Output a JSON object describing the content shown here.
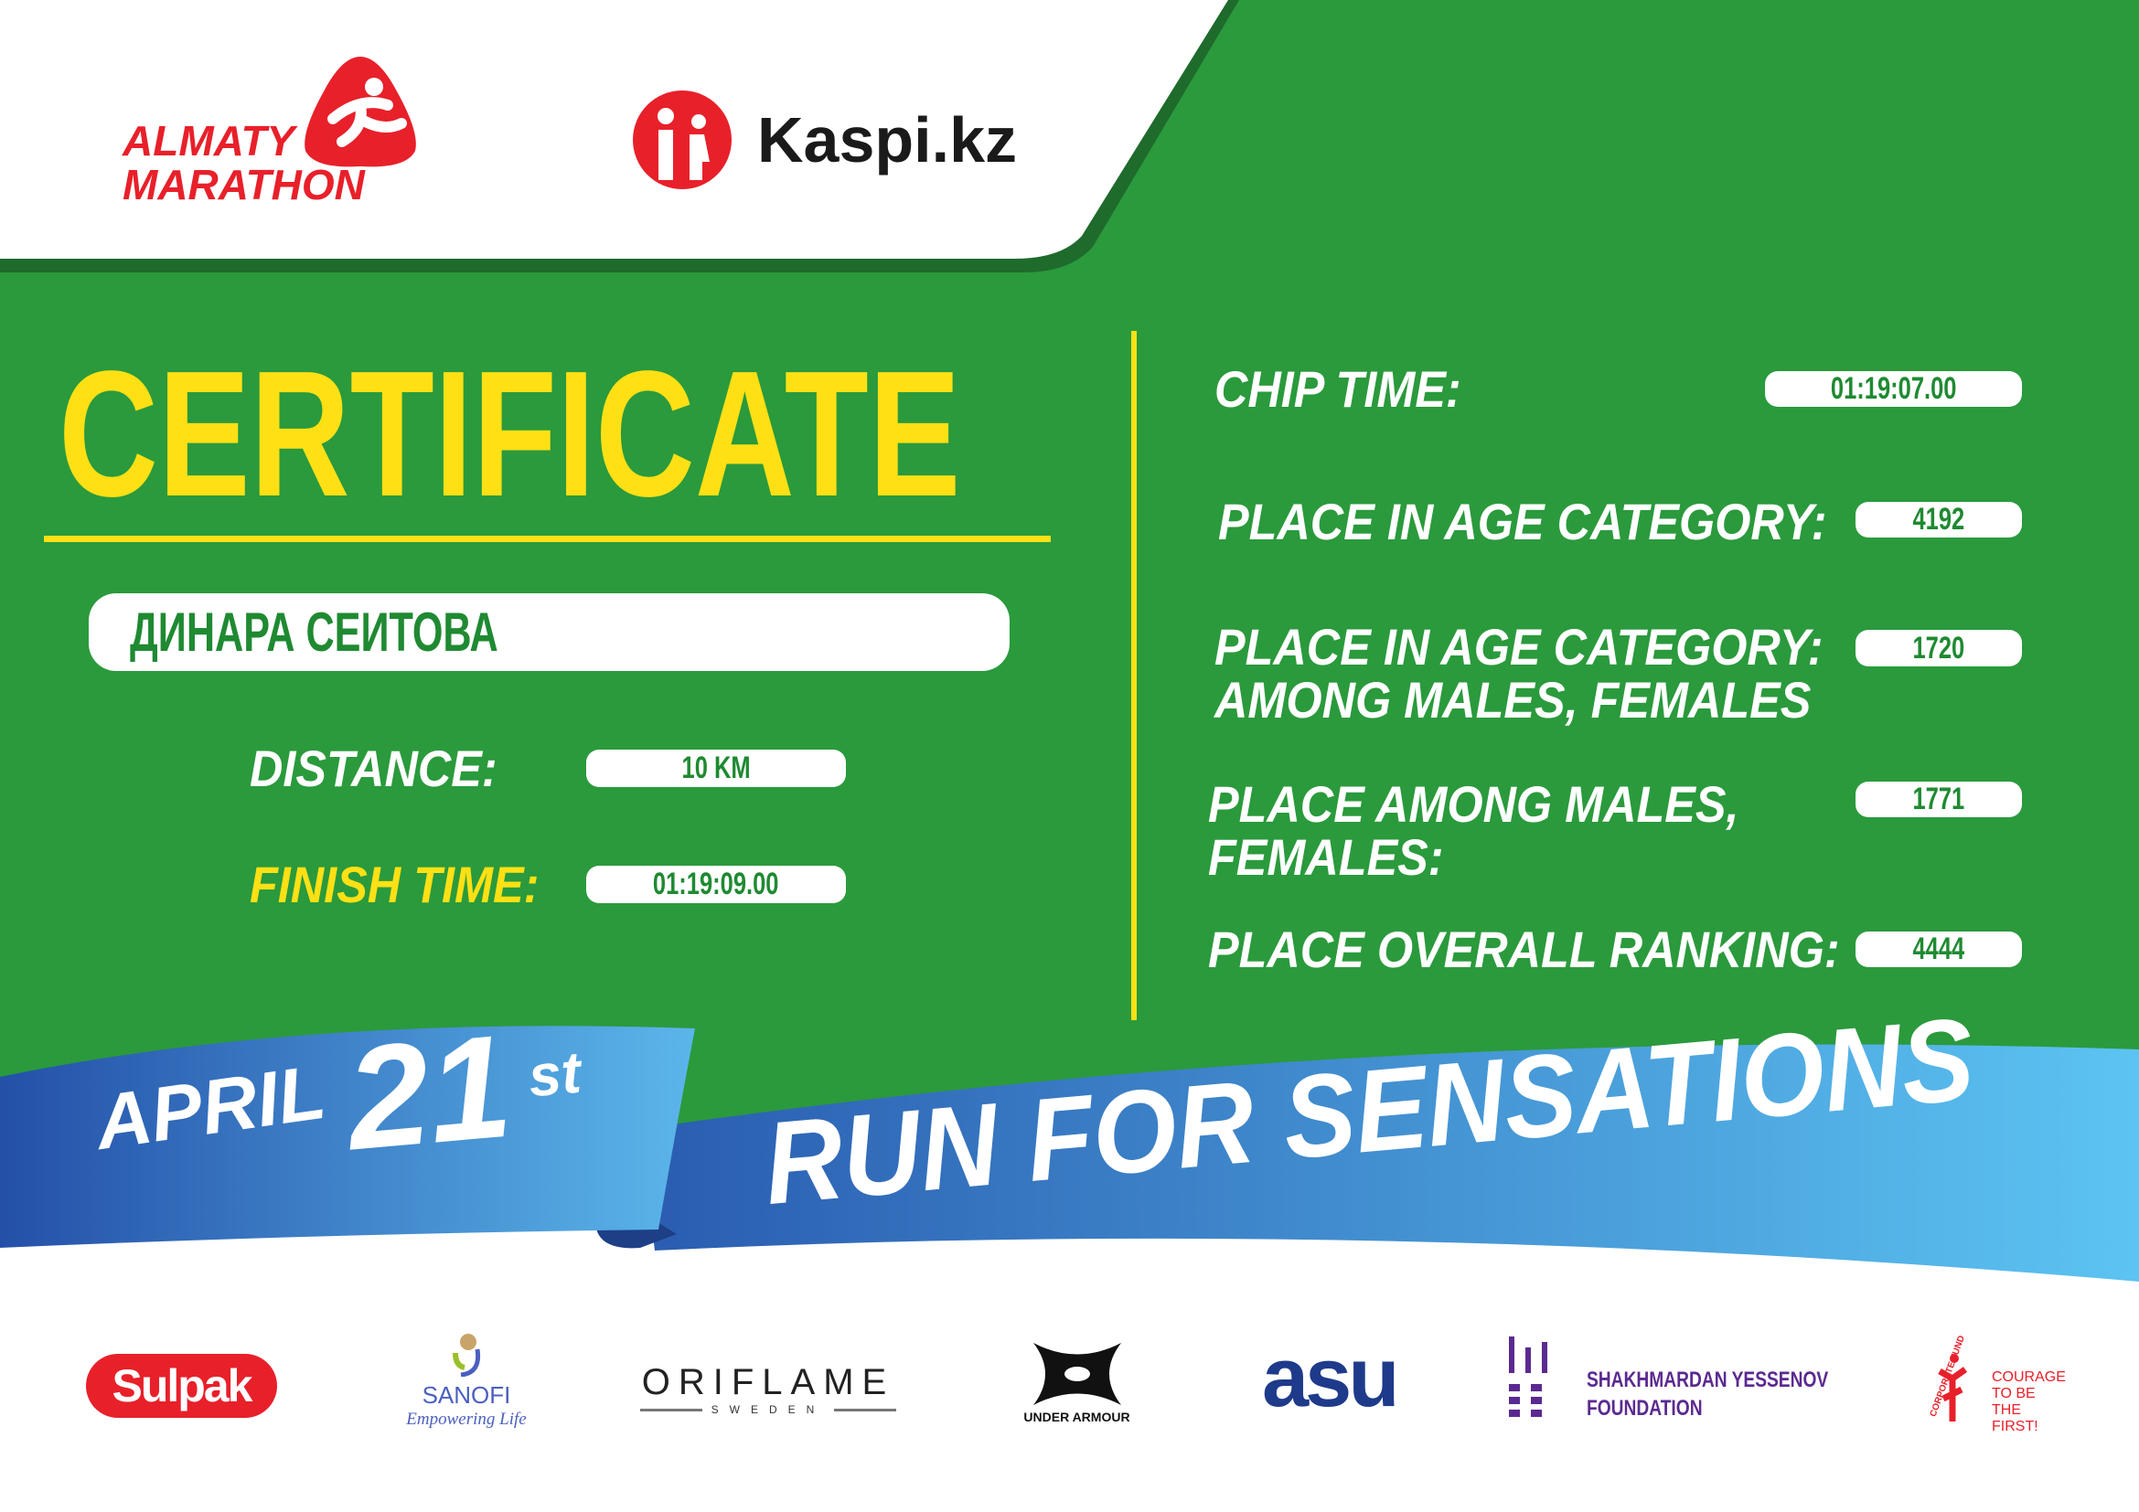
{
  "header": {
    "logo_text": [
      "ALMATY",
      "MARATHON"
    ],
    "sponsor_logo_text": "Kaspi.kz"
  },
  "certificate": {
    "title": "CERTIFICATE",
    "name": "ДИНАРА СЕИТОВА",
    "distance_label": "DISTANCE:",
    "distance_value": "10 KM",
    "finish_label": "FINISH TIME:",
    "finish_value": "01:19:09.00"
  },
  "results": {
    "chip_label": "CHIP TIME:",
    "chip_value": "01:19:07.00",
    "age_label": "PLACE IN AGE CATEGORY:",
    "age_value": "4192",
    "age_gender_label_1": "PLACE IN AGE CATEGORY:",
    "age_gender_label_2": "AMONG MALES, FEMALES",
    "age_gender_value": "1720",
    "gender_label_1": "PLACE AMONG MALES,",
    "gender_label_2": "FEMALES:",
    "gender_value": "1771",
    "overall_label": "PLACE OVERALL RANKING:",
    "overall_value": "4444"
  },
  "ribbon": {
    "month": "APRIL",
    "day": "21",
    "suffix": "st",
    "slogan": "RUN FOR SENSATIONS"
  },
  "sponsors": {
    "sulpak": "Sulpak",
    "sanofi": "SANOFI",
    "sanofi_tagline": "Empowering Life",
    "oriflame": "ORIFLAME",
    "oriflame_sub": "SWEDEN",
    "under_armour": "UNDER ARMOUR",
    "asu": "asu",
    "yessenov_1": "SHAKHMARDAN YESSENOV",
    "yessenov_2": "FOUNDATION",
    "courage_arc": "CORPORATE FUND",
    "courage_1": "COURAGE",
    "courage_2": "TO BE",
    "courage_3": "THE FIRST!"
  },
  "colors": {
    "green": "#2a9a3c",
    "yellow": "#ffe015",
    "red": "#e8202a",
    "blue_dark": "#2a5cb0",
    "blue_light": "#5cc4f2"
  }
}
